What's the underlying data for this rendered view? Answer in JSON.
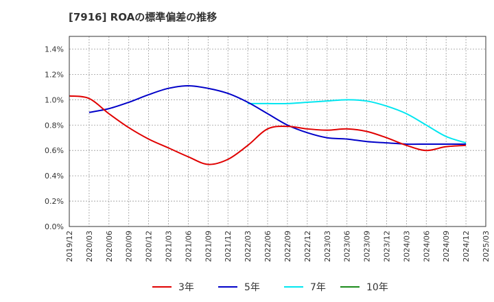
{
  "title": "[7916]  ROAの標準偏差の推移",
  "chart_data": {
    "type": "line",
    "title": "[7916]  ROAの標準偏差の推移",
    "xlabel": "",
    "ylabel": "",
    "x_ticks": [
      "2019/12",
      "2020/03",
      "2020/06",
      "2020/09",
      "2020/12",
      "2021/03",
      "2021/06",
      "2021/09",
      "2021/12",
      "2022/03",
      "2022/06",
      "2022/09",
      "2022/12",
      "2023/03",
      "2023/06",
      "2023/09",
      "2023/12",
      "2024/03",
      "2024/06",
      "2024/09",
      "2024/12",
      "2025/03"
    ],
    "y_ticks": [
      "0.0%",
      "0.2%",
      "0.4%",
      "0.6%",
      "0.8%",
      "1.0%",
      "1.2%",
      "1.4%"
    ],
    "ylim": [
      0,
      1.5
    ],
    "grid": true,
    "legend_position": "bottom",
    "series": [
      {
        "name": "3年",
        "color": "#e00000",
        "x": [
          "2019/12",
          "2020/03",
          "2020/06",
          "2020/09",
          "2020/12",
          "2021/03",
          "2021/06",
          "2021/09",
          "2021/12",
          "2022/03",
          "2022/06",
          "2022/09",
          "2022/12",
          "2023/03",
          "2023/06",
          "2023/09",
          "2023/12",
          "2024/03",
          "2024/06",
          "2024/09",
          "2024/12"
        ],
        "values": [
          1.03,
          1.01,
          0.89,
          0.78,
          0.69,
          0.62,
          0.55,
          0.49,
          0.53,
          0.64,
          0.77,
          0.79,
          0.77,
          0.76,
          0.77,
          0.75,
          0.7,
          0.64,
          0.6,
          0.63,
          0.64
        ]
      },
      {
        "name": "5年",
        "color": "#0000c8",
        "x": [
          "2020/03",
          "2020/06",
          "2020/09",
          "2020/12",
          "2021/03",
          "2021/06",
          "2021/09",
          "2021/12",
          "2022/03",
          "2022/06",
          "2022/09",
          "2022/12",
          "2023/03",
          "2023/06",
          "2023/09",
          "2023/12",
          "2024/03",
          "2024/06",
          "2024/09",
          "2024/12"
        ],
        "values": [
          0.9,
          0.93,
          0.98,
          1.04,
          1.09,
          1.11,
          1.09,
          1.05,
          0.98,
          0.89,
          0.8,
          0.74,
          0.7,
          0.69,
          0.67,
          0.66,
          0.65,
          0.65,
          0.65,
          0.65
        ]
      },
      {
        "name": "7年",
        "color": "#00e6f0",
        "x": [
          "2022/03",
          "2022/06",
          "2022/09",
          "2022/12",
          "2023/03",
          "2023/06",
          "2023/09",
          "2023/12",
          "2024/03",
          "2024/06",
          "2024/09",
          "2024/12"
        ],
        "values": [
          0.97,
          0.97,
          0.97,
          0.98,
          0.99,
          1.0,
          0.99,
          0.95,
          0.89,
          0.8,
          0.71,
          0.66
        ]
      },
      {
        "name": "10年",
        "color": "#1a8a1a",
        "x": [],
        "values": []
      }
    ]
  }
}
